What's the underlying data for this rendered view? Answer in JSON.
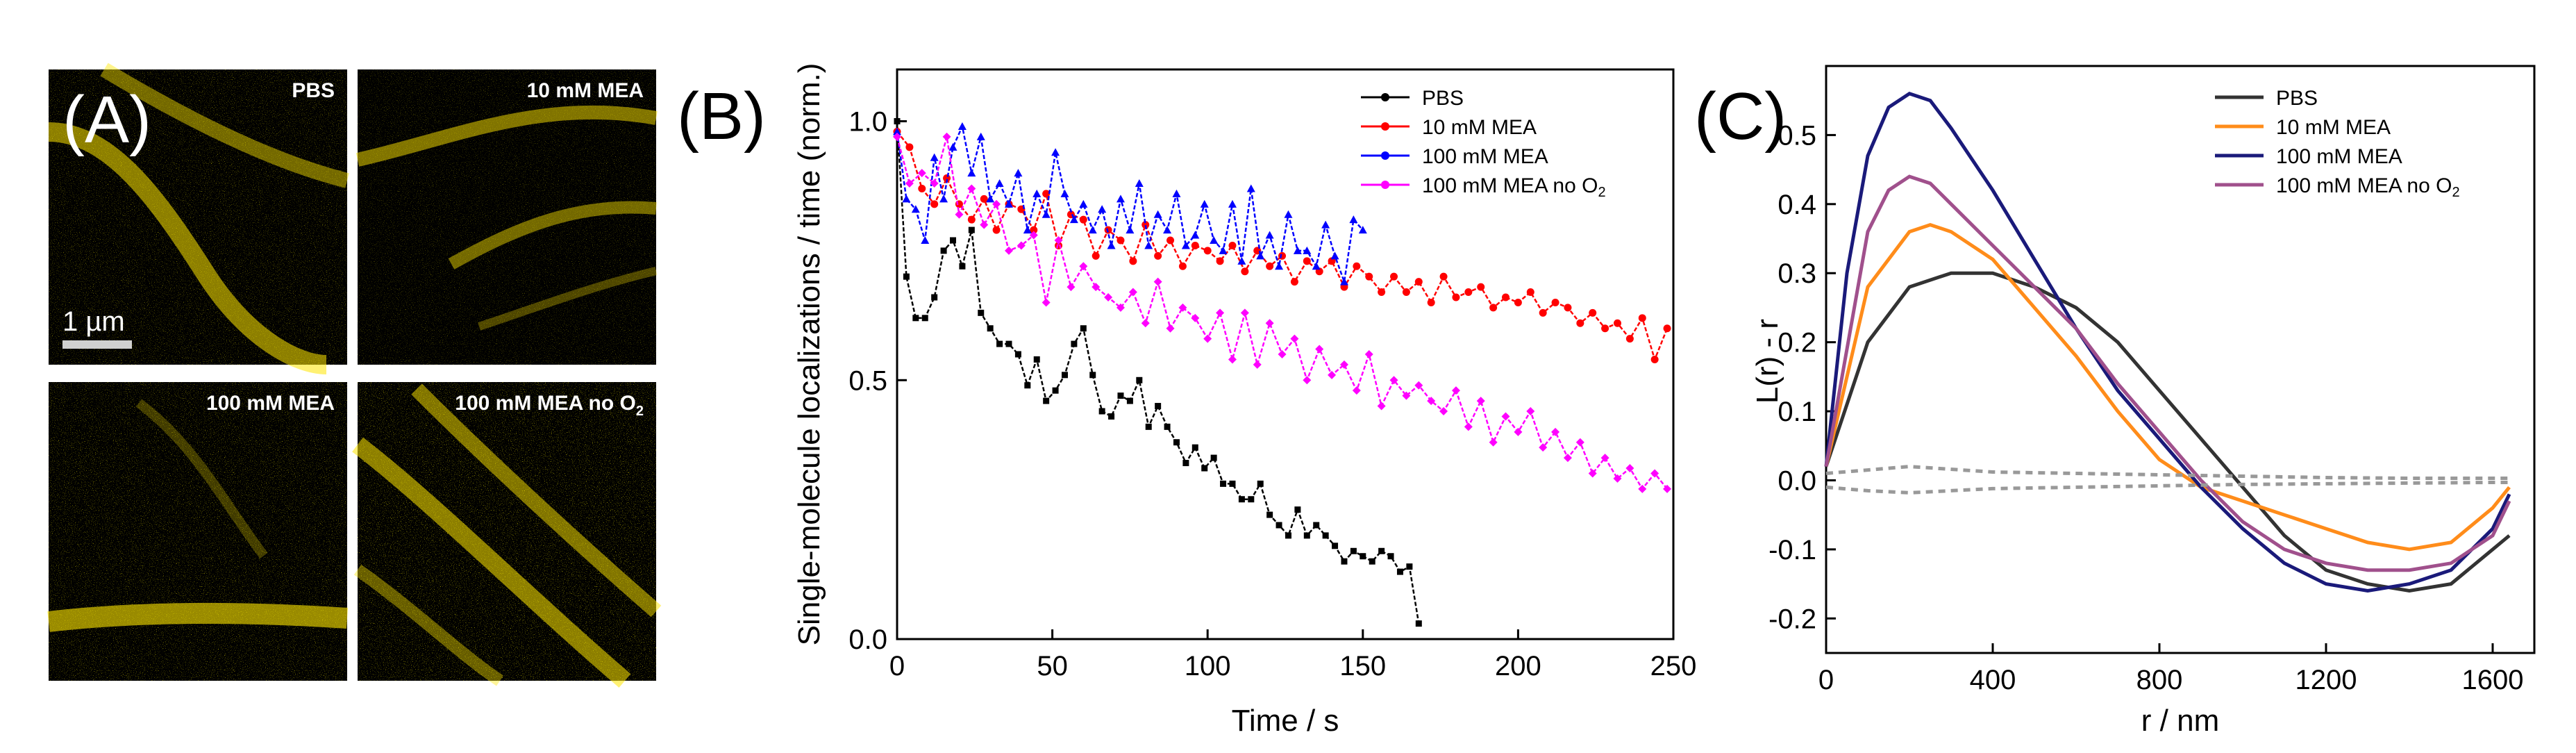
{
  "panel_labels": {
    "a": "(A)",
    "b": "(B)",
    "c": "(C)"
  },
  "micrographs": {
    "scale_bar_label": "1 µm",
    "tiles": [
      {
        "label": "PBS",
        "sub": ""
      },
      {
        "label": "10 mM MEA",
        "sub": ""
      },
      {
        "label": "100 mM MEA",
        "sub": ""
      },
      {
        "label": "100 mM MEA no O",
        "sub": "2"
      }
    ],
    "fluorescence_color": "#ffe600"
  },
  "chart_data": [
    {
      "type": "line",
      "panel": "B",
      "title": "",
      "xlabel": "Time / s",
      "ylabel": "Single-molecule localizations / time (norm.)",
      "xlim": [
        0,
        250
      ],
      "ylim": [
        0,
        1.1
      ],
      "xticks": [
        "0",
        "50",
        "100",
        "150",
        "200",
        "250"
      ],
      "yticks": [
        "0.0",
        "0.5",
        "1.0"
      ],
      "xtick_values": [
        0,
        50,
        100,
        150,
        200,
        250
      ],
      "ytick_values": [
        0,
        0.5,
        1.0
      ],
      "legend_position": "top-right",
      "series": [
        {
          "name": "PBS",
          "color": "#000000",
          "marker": "square",
          "x": [
            0,
            3,
            6,
            9,
            12,
            15,
            18,
            21,
            24,
            27,
            30,
            33,
            36,
            39,
            42,
            45,
            48,
            51,
            54,
            57,
            60,
            63,
            66,
            69,
            72,
            75,
            78,
            81,
            84,
            87,
            90,
            93,
            96,
            99,
            102,
            105,
            108,
            111,
            114,
            117,
            120,
            123,
            126,
            129,
            132,
            135,
            138,
            141,
            144,
            147,
            150,
            153,
            156,
            159,
            162,
            165,
            168
          ],
          "values": [
            1.0,
            0.7,
            0.62,
            0.62,
            0.66,
            0.75,
            0.77,
            0.72,
            0.79,
            0.63,
            0.6,
            0.57,
            0.57,
            0.55,
            0.49,
            0.54,
            0.46,
            0.48,
            0.51,
            0.57,
            0.6,
            0.51,
            0.44,
            0.43,
            0.47,
            0.46,
            0.5,
            0.41,
            0.45,
            0.41,
            0.38,
            0.34,
            0.37,
            0.33,
            0.35,
            0.3,
            0.3,
            0.27,
            0.27,
            0.3,
            0.24,
            0.22,
            0.2,
            0.25,
            0.2,
            0.22,
            0.2,
            0.18,
            0.15,
            0.17,
            0.16,
            0.15,
            0.17,
            0.16,
            0.13,
            0.14,
            0.03
          ]
        },
        {
          "name": "10 mM MEA",
          "color": "#ff0000",
          "marker": "circle",
          "x": [
            0,
            4,
            8,
            12,
            16,
            20,
            24,
            28,
            32,
            36,
            40,
            44,
            48,
            52,
            56,
            60,
            64,
            68,
            72,
            76,
            80,
            84,
            88,
            92,
            96,
            100,
            104,
            108,
            112,
            116,
            120,
            124,
            128,
            132,
            136,
            140,
            144,
            148,
            152,
            156,
            160,
            164,
            168,
            172,
            176,
            180,
            184,
            188,
            192,
            196,
            200,
            204,
            208,
            212,
            216,
            220,
            224,
            228,
            232,
            236,
            240,
            244,
            248
          ],
          "values": [
            0.98,
            0.95,
            0.87,
            0.84,
            0.89,
            0.84,
            0.81,
            0.85,
            0.79,
            0.84,
            0.83,
            0.79,
            0.86,
            0.76,
            0.82,
            0.81,
            0.74,
            0.79,
            0.77,
            0.73,
            0.8,
            0.74,
            0.77,
            0.72,
            0.76,
            0.75,
            0.73,
            0.76,
            0.71,
            0.75,
            0.72,
            0.74,
            0.69,
            0.73,
            0.71,
            0.73,
            0.68,
            0.72,
            0.7,
            0.67,
            0.7,
            0.67,
            0.69,
            0.65,
            0.7,
            0.66,
            0.67,
            0.68,
            0.64,
            0.66,
            0.65,
            0.67,
            0.63,
            0.65,
            0.64,
            0.61,
            0.63,
            0.6,
            0.61,
            0.58,
            0.62,
            0.54,
            0.6
          ]
        },
        {
          "name": "100 mM MEA",
          "color": "#0000ff",
          "marker": "triangle",
          "x": [
            0,
            3,
            6,
            9,
            12,
            15,
            18,
            21,
            24,
            27,
            30,
            33,
            36,
            39,
            42,
            45,
            48,
            51,
            54,
            57,
            60,
            63,
            66,
            69,
            72,
            75,
            78,
            81,
            84,
            87,
            90,
            93,
            96,
            99,
            102,
            105,
            108,
            111,
            114,
            117,
            120,
            123,
            126,
            129,
            132,
            135,
            138,
            141,
            144,
            147,
            150
          ],
          "values": [
            0.98,
            0.85,
            0.83,
            0.77,
            0.93,
            0.85,
            0.95,
            0.99,
            0.9,
            0.97,
            0.85,
            0.88,
            0.84,
            0.9,
            0.79,
            0.86,
            0.82,
            0.94,
            0.86,
            0.81,
            0.84,
            0.79,
            0.83,
            0.76,
            0.85,
            0.79,
            0.88,
            0.76,
            0.82,
            0.79,
            0.86,
            0.76,
            0.78,
            0.84,
            0.77,
            0.75,
            0.84,
            0.73,
            0.87,
            0.74,
            0.78,
            0.72,
            0.82,
            0.75,
            0.75,
            0.72,
            0.8,
            0.74,
            0.69,
            0.81,
            0.79
          ]
        },
        {
          "name": "100 mM MEA no O",
          "name_sub": "2",
          "color": "#ff00ff",
          "marker": "star",
          "x": [
            0,
            4,
            8,
            12,
            16,
            20,
            24,
            28,
            32,
            36,
            40,
            44,
            48,
            52,
            56,
            60,
            64,
            68,
            72,
            76,
            80,
            84,
            88,
            92,
            96,
            100,
            104,
            108,
            112,
            116,
            120,
            124,
            128,
            132,
            136,
            140,
            144,
            148,
            152,
            156,
            160,
            164,
            168,
            172,
            176,
            180,
            184,
            188,
            192,
            196,
            200,
            204,
            208,
            212,
            216,
            220,
            224,
            228,
            232,
            236,
            240,
            244,
            248
          ],
          "values": [
            0.97,
            0.88,
            0.9,
            0.88,
            0.97,
            0.82,
            0.87,
            0.8,
            0.84,
            0.75,
            0.76,
            0.78,
            0.65,
            0.77,
            0.68,
            0.72,
            0.68,
            0.66,
            0.64,
            0.67,
            0.61,
            0.69,
            0.6,
            0.64,
            0.62,
            0.58,
            0.63,
            0.54,
            0.63,
            0.53,
            0.61,
            0.55,
            0.58,
            0.5,
            0.56,
            0.51,
            0.53,
            0.48,
            0.55,
            0.45,
            0.5,
            0.47,
            0.49,
            0.46,
            0.44,
            0.48,
            0.41,
            0.46,
            0.38,
            0.43,
            0.4,
            0.44,
            0.37,
            0.4,
            0.35,
            0.38,
            0.32,
            0.35,
            0.31,
            0.33,
            0.29,
            0.32,
            0.29
          ]
        }
      ]
    },
    {
      "type": "line",
      "panel": "C",
      "title": "",
      "xlabel": "r / nm",
      "ylabel": "L(r) - r",
      "xlim": [
        0,
        1700
      ],
      "ylim": [
        -0.25,
        0.6
      ],
      "xticks": [
        "0",
        "400",
        "800",
        "1200",
        "1600"
      ],
      "yticks": [
        "-0.2",
        "-0.1",
        "0.0",
        "0.1",
        "0.2",
        "0.3",
        "0.4",
        "0.5"
      ],
      "xtick_values": [
        0,
        400,
        800,
        1200,
        1600
      ],
      "ytick_values": [
        -0.2,
        -0.1,
        0.0,
        0.1,
        0.2,
        0.3,
        0.4,
        0.5
      ],
      "legend_position": "top-right",
      "series": [
        {
          "name": "PBS",
          "color": "#333333",
          "x": [
            0,
            100,
            200,
            300,
            400,
            500,
            600,
            700,
            800,
            900,
            1000,
            1100,
            1200,
            1300,
            1400,
            1500,
            1600,
            1640
          ],
          "values": [
            0.02,
            0.2,
            0.28,
            0.3,
            0.3,
            0.28,
            0.25,
            0.2,
            0.13,
            0.06,
            -0.01,
            -0.08,
            -0.13,
            -0.15,
            -0.16,
            -0.15,
            -0.1,
            -0.08
          ]
        },
        {
          "name": "10 mM MEA",
          "color": "#ff8c1a",
          "x": [
            0,
            100,
            200,
            250,
            300,
            400,
            500,
            600,
            700,
            800,
            900,
            1000,
            1100,
            1200,
            1300,
            1400,
            1500,
            1600,
            1640
          ],
          "values": [
            0.02,
            0.28,
            0.36,
            0.37,
            0.36,
            0.32,
            0.25,
            0.18,
            0.1,
            0.03,
            -0.01,
            -0.03,
            -0.05,
            -0.07,
            -0.09,
            -0.1,
            -0.09,
            -0.04,
            -0.01
          ]
        },
        {
          "name": "100 mM MEA",
          "color": "#1a1a7a",
          "x": [
            0,
            50,
            100,
            150,
            200,
            250,
            300,
            400,
            500,
            600,
            700,
            800,
            900,
            1000,
            1100,
            1200,
            1300,
            1400,
            1500,
            1600,
            1640
          ],
          "values": [
            0.02,
            0.3,
            0.47,
            0.54,
            0.56,
            0.55,
            0.51,
            0.42,
            0.32,
            0.22,
            0.13,
            0.06,
            -0.01,
            -0.07,
            -0.12,
            -0.15,
            -0.16,
            -0.15,
            -0.13,
            -0.07,
            -0.02
          ]
        },
        {
          "name": "100 mM MEA no O",
          "name_sub": "2",
          "color": "#a0508c",
          "x": [
            0,
            100,
            150,
            200,
            250,
            300,
            400,
            500,
            600,
            700,
            800,
            900,
            1000,
            1100,
            1200,
            1300,
            1400,
            1500,
            1600,
            1640
          ],
          "values": [
            0.02,
            0.36,
            0.42,
            0.44,
            0.43,
            0.4,
            0.34,
            0.28,
            0.22,
            0.14,
            0.07,
            0.0,
            -0.06,
            -0.1,
            -0.12,
            -0.13,
            -0.13,
            -0.12,
            -0.08,
            -0.03
          ]
        },
        {
          "name": "",
          "color": "#999999",
          "dashed": true,
          "x": [
            0,
            100,
            200,
            400,
            600,
            800,
            1000,
            1200,
            1400,
            1600,
            1640
          ],
          "values": [
            0.01,
            0.015,
            0.02,
            0.012,
            0.01,
            0.008,
            0.006,
            0.004,
            0.003,
            0.003,
            0.003
          ]
        },
        {
          "name": "",
          "color": "#999999",
          "dashed": true,
          "x": [
            0,
            100,
            200,
            400,
            600,
            800,
            1000,
            1200,
            1400,
            1600,
            1640
          ],
          "values": [
            -0.01,
            -0.015,
            -0.018,
            -0.012,
            -0.01,
            -0.008,
            -0.006,
            -0.005,
            -0.004,
            -0.003,
            -0.003
          ]
        }
      ]
    }
  ]
}
